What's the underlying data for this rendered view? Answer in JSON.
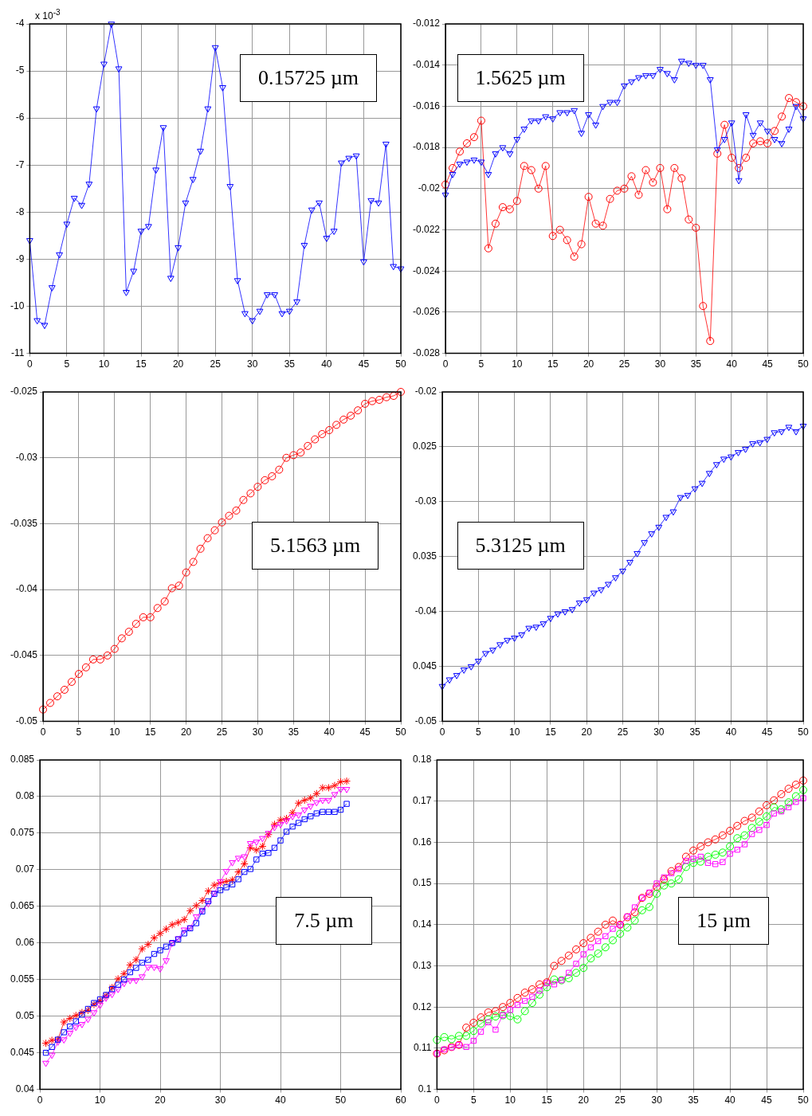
{
  "chart_data": [
    {
      "type": "line",
      "annotations": [
        "0.15725 µm",
        "x 10$^{-3}$"
      ],
      "grid": true,
      "line_style": "solid",
      "xlim": [
        0,
        50
      ],
      "xticks": [
        0,
        5,
        10,
        15,
        20,
        25,
        30,
        35,
        40,
        45,
        50
      ],
      "ylim": [
        -11,
        -4
      ],
      "yticks": [
        -11,
        -10,
        -9,
        -8,
        -7,
        -6,
        -5,
        -4
      ],
      "x": [
        0,
        1,
        2,
        3,
        4,
        5,
        6,
        7,
        8,
        9,
        10,
        11,
        12,
        13,
        14,
        15,
        16,
        17,
        18,
        19,
        20,
        21,
        22,
        23,
        24,
        25,
        26,
        27,
        28,
        29,
        30,
        31,
        32,
        33,
        34,
        35,
        36,
        37,
        38,
        39,
        40,
        41,
        42,
        43,
        44,
        45,
        46,
        47,
        48,
        49,
        50
      ],
      "series": [
        {
          "color": "#0000ff",
          "marker": "triangle",
          "values": [
            -8.6,
            -10.3,
            -10.4,
            -9.6,
            -8.9,
            -8.25,
            -7.7,
            -7.85,
            -7.4,
            -5.8,
            -4.85,
            -4.0,
            -4.95,
            -9.7,
            -9.25,
            -8.4,
            -8.3,
            -7.1,
            -6.2,
            -9.4,
            -8.75,
            -7.8,
            -7.3,
            -6.7,
            -5.8,
            -4.5,
            -5.35,
            -7.45,
            -9.45,
            -10.15,
            -10.3,
            -10.1,
            -9.75,
            -9.75,
            -10.15,
            -10.1,
            -9.9,
            -8.7,
            -7.95,
            -7.8,
            -8.55,
            -8.4,
            -6.95,
            -6.85,
            -6.8,
            -9.05,
            -7.75,
            -7.8,
            -6.55,
            -9.15,
            -9.2
          ]
        }
      ]
    },
    {
      "type": "line",
      "annotations": [
        "1.5625 µm"
      ],
      "grid": true,
      "line_style": "solid",
      "xlim": [
        0,
        50
      ],
      "xticks": [
        0,
        5,
        10,
        15,
        20,
        25,
        30,
        35,
        40,
        45,
        50
      ],
      "ylim": [
        -0.028,
        -0.012
      ],
      "yticks": [
        -0.028,
        -0.026,
        -0.024,
        -0.022,
        -0.02,
        -0.018,
        -0.016,
        -0.014,
        -0.012
      ],
      "x": [
        0,
        1,
        2,
        3,
        4,
        5,
        6,
        7,
        8,
        9,
        10,
        11,
        12,
        13,
        14,
        15,
        16,
        17,
        18,
        19,
        20,
        21,
        22,
        23,
        24,
        25,
        26,
        27,
        28,
        29,
        30,
        31,
        32,
        33,
        34,
        35,
        36,
        37,
        38,
        39,
        40,
        41,
        42,
        43,
        44,
        45,
        46,
        47,
        48,
        49,
        50
      ],
      "series": [
        {
          "color": "#0000ff",
          "marker": "triangle",
          "values": [
            -0.0203,
            -0.0193,
            -0.0188,
            -0.0187,
            -0.0186,
            -0.0187,
            -0.0193,
            -0.0183,
            -0.018,
            -0.0183,
            -0.0176,
            -0.0171,
            -0.0167,
            -0.0167,
            -0.0165,
            -0.0166,
            -0.0163,
            -0.0163,
            -0.0162,
            -0.0173,
            -0.0164,
            -0.0169,
            -0.016,
            -0.0158,
            -0.0158,
            -0.015,
            -0.0148,
            -0.0146,
            -0.0145,
            -0.0145,
            -0.0142,
            -0.0144,
            -0.0147,
            -0.0138,
            -0.0139,
            -0.014,
            -0.014,
            -0.0147,
            -0.0181,
            -0.0176,
            -0.0168,
            -0.0196,
            -0.0164,
            -0.0174,
            -0.0168,
            -0.0172,
            -0.0176,
            -0.0178,
            -0.0171,
            -0.016,
            -0.0166
          ]
        },
        {
          "color": "#ff0000",
          "marker": "circle",
          "values": [
            -0.0198,
            -0.019,
            -0.0182,
            -0.0178,
            -0.0175,
            -0.0167,
            -0.0229,
            -0.0217,
            -0.0209,
            -0.021,
            -0.0206,
            -0.0189,
            -0.0191,
            -0.02,
            -0.0189,
            -0.0223,
            -0.022,
            -0.0225,
            -0.0233,
            -0.0227,
            -0.0204,
            -0.0217,
            -0.0218,
            -0.0205,
            -0.0201,
            -0.02,
            -0.0194,
            -0.0203,
            -0.0191,
            -0.0197,
            -0.019,
            -0.021,
            -0.019,
            -0.0195,
            -0.0215,
            -0.0219,
            -0.0257,
            -0.0274,
            -0.0183,
            -0.0169,
            -0.0185,
            -0.019,
            -0.0185,
            -0.0178,
            -0.0177,
            -0.0178,
            -0.0172,
            -0.0165,
            -0.0156,
            -0.0158,
            -0.016
          ]
        }
      ]
    },
    {
      "type": "line",
      "annotations": [
        "5.1563 µm"
      ],
      "grid": true,
      "line_style": "solid",
      "xlim": [
        0,
        50
      ],
      "xticks": [
        0,
        5,
        10,
        15,
        20,
        25,
        30,
        35,
        40,
        45,
        50
      ],
      "ylim": [
        -0.05,
        -0.025
      ],
      "yticks": [
        -0.05,
        -0.045,
        -0.04,
        -0.035,
        -0.03,
        -0.025
      ],
      "x": [
        0,
        1,
        2,
        3,
        4,
        5,
        6,
        7,
        8,
        9,
        10,
        11,
        12,
        13,
        14,
        15,
        16,
        17,
        18,
        19,
        20,
        21,
        22,
        23,
        24,
        25,
        26,
        27,
        28,
        29,
        30,
        31,
        32,
        33,
        34,
        35,
        36,
        37,
        38,
        39,
        40,
        41,
        42,
        43,
        44,
        45,
        46,
        47,
        48,
        49,
        50
      ],
      "series": [
        {
          "color": "#ff0000",
          "marker": "circle",
          "values": [
            -0.0491,
            -0.0486,
            -0.0481,
            -0.0476,
            -0.047,
            -0.0464,
            -0.0459,
            -0.0453,
            -0.0453,
            -0.045,
            -0.0445,
            -0.0437,
            -0.0432,
            -0.0426,
            -0.0421,
            -0.0421,
            -0.0414,
            -0.0409,
            -0.0399,
            -0.0397,
            -0.0387,
            -0.0379,
            -0.0369,
            -0.0361,
            -0.0355,
            -0.0349,
            -0.0344,
            -0.034,
            -0.0332,
            -0.0327,
            -0.0322,
            -0.0317,
            -0.0314,
            -0.0309,
            -0.03,
            -0.0298,
            -0.0296,
            -0.0291,
            -0.0286,
            -0.0282,
            -0.0279,
            -0.0275,
            -0.0271,
            -0.0268,
            -0.0264,
            -0.0259,
            -0.0257,
            -0.0256,
            -0.0254,
            -0.0253,
            -0.025
          ]
        }
      ]
    },
    {
      "type": "line",
      "annotations": [
        "5.3125 µm"
      ],
      "grid": true,
      "line_style": "solid",
      "xlim": [
        0,
        50
      ],
      "xticks": [
        0,
        5,
        10,
        15,
        20,
        25,
        30,
        35,
        40,
        45,
        50
      ],
      "ylim": [
        -0.05,
        -0.02
      ],
      "yticks": [
        -0.05,
        {
          "value": -0.045,
          "label": "0.045"
        },
        -0.04,
        {
          "value": -0.035,
          "label": "0.035"
        },
        -0.03,
        {
          "value": -0.025,
          "label": "0.025"
        },
        -0.02
      ],
      "x": [
        0,
        1,
        2,
        3,
        4,
        5,
        6,
        7,
        8,
        9,
        10,
        11,
        12,
        13,
        14,
        15,
        16,
        17,
        18,
        19,
        20,
        21,
        22,
        23,
        24,
        25,
        26,
        27,
        28,
        29,
        30,
        31,
        32,
        33,
        34,
        35,
        36,
        37,
        38,
        39,
        40,
        41,
        42,
        43,
        44,
        45,
        46,
        47,
        48,
        49,
        50
      ],
      "series": [
        {
          "color": "#0000ff",
          "marker": "triangle",
          "values": [
            -0.0468,
            -0.0462,
            -0.0458,
            -0.0453,
            -0.045,
            -0.0445,
            -0.0438,
            -0.0435,
            -0.043,
            -0.0426,
            -0.0424,
            -0.0421,
            -0.0415,
            -0.0414,
            -0.0411,
            -0.0406,
            -0.0402,
            -0.04,
            -0.0398,
            -0.0392,
            -0.0389,
            -0.0383,
            -0.038,
            -0.0375,
            -0.0369,
            -0.0363,
            -0.0355,
            -0.0347,
            -0.0337,
            -0.0329,
            -0.0323,
            -0.0314,
            -0.0309,
            -0.0296,
            -0.0294,
            -0.0288,
            -0.0283,
            -0.0274,
            -0.0266,
            -0.0261,
            -0.0259,
            -0.0255,
            -0.0252,
            -0.0247,
            -0.0246,
            -0.0243,
            -0.0237,
            -0.0236,
            -0.0232,
            -0.0236,
            -0.0231
          ]
        }
      ]
    },
    {
      "type": "line",
      "annotations": [
        "7.5 µm"
      ],
      "grid": true,
      "line_style": "solid",
      "xlim": [
        0,
        60
      ],
      "xticks": [
        0,
        10,
        20,
        30,
        40,
        50,
        60
      ],
      "ylim": [
        0.04,
        0.085
      ],
      "yticks": [
        0.04,
        0.045,
        0.05,
        0.055,
        0.06,
        0.065,
        0.07,
        0.075,
        0.08,
        0.085
      ],
      "x": [
        1,
        2,
        3,
        4,
        5,
        6,
        7,
        8,
        9,
        10,
        11,
        12,
        13,
        14,
        15,
        16,
        17,
        18,
        19,
        20,
        21,
        22,
        23,
        24,
        25,
        26,
        27,
        28,
        29,
        30,
        31,
        32,
        33,
        34,
        35,
        36,
        37,
        38,
        39,
        40,
        41,
        42,
        43,
        44,
        45,
        46,
        47,
        48,
        49,
        50,
        51
      ],
      "series": [
        {
          "color": "#0000ff",
          "marker": "square",
          "values": [
            0.045,
            0.0458,
            0.0468,
            0.0478,
            0.0486,
            0.0493,
            0.0502,
            0.051,
            0.0518,
            0.0523,
            0.0529,
            0.0537,
            0.0543,
            0.055,
            0.056,
            0.0566,
            0.0573,
            0.0577,
            0.0585,
            0.059,
            0.0595,
            0.06,
            0.0605,
            0.0613,
            0.062,
            0.0627,
            0.0643,
            0.0657,
            0.0667,
            0.0672,
            0.0676,
            0.068,
            0.0687,
            0.0697,
            0.0701,
            0.0714,
            0.0722,
            0.0723,
            0.073,
            0.074,
            0.0752,
            0.0759,
            0.0764,
            0.0769,
            0.0773,
            0.0777,
            0.0779,
            0.0779,
            0.0779,
            0.0782,
            0.079
          ]
        },
        {
          "color": "#ff00ff",
          "marker": "triangle",
          "values": [
            0.0436,
            0.0447,
            0.0465,
            0.0468,
            0.0477,
            0.0485,
            0.0489,
            0.0496,
            0.0505,
            0.0515,
            0.0525,
            0.053,
            0.0537,
            0.0545,
            0.0549,
            0.0549,
            0.0554,
            0.0567,
            0.0567,
            0.0565,
            0.0576,
            0.06,
            0.0606,
            0.0618,
            0.0621,
            0.0636,
            0.0645,
            0.0654,
            0.0668,
            0.0684,
            0.0698,
            0.071,
            0.0716,
            0.0718,
            0.0736,
            0.0738,
            0.0743,
            0.075,
            0.0758,
            0.0762,
            0.0767,
            0.0773,
            0.0775,
            0.0782,
            0.0787,
            0.0792,
            0.0795,
            0.0795,
            0.0803,
            0.081,
            0.081
          ]
        },
        {
          "color": "#ff0000",
          "marker": "cross",
          "values": [
            0.0463,
            0.0467,
            0.0468,
            0.0492,
            0.0497,
            0.0501,
            0.0505,
            0.0508,
            0.0516,
            0.0521,
            0.0528,
            0.0539,
            0.0551,
            0.0558,
            0.057,
            0.0577,
            0.0592,
            0.0598,
            0.0607,
            0.0613,
            0.0619,
            0.0625,
            0.0628,
            0.0632,
            0.0644,
            0.0651,
            0.0658,
            0.0671,
            0.0679,
            0.0682,
            0.0684,
            0.0686,
            0.0697,
            0.0708,
            0.073,
            0.0727,
            0.0732,
            0.0748,
            0.0762,
            0.0768,
            0.077,
            0.0778,
            0.0791,
            0.0795,
            0.0798,
            0.0804,
            0.0812,
            0.0812,
            0.0815,
            0.082,
            0.0821
          ]
        }
      ]
    },
    {
      "type": "line",
      "annotations": [
        "15 µm"
      ],
      "grid": true,
      "line_style": "solid",
      "xlim": [
        0,
        50
      ],
      "xticks": [
        0,
        5,
        10,
        15,
        20,
        25,
        30,
        35,
        40,
        45,
        50
      ],
      "ylim": [
        0.1,
        0.18
      ],
      "yticks": [
        0.1,
        0.11,
        0.12,
        0.13,
        0.14,
        0.15,
        0.16,
        0.17,
        0.18
      ],
      "x": [
        0,
        1,
        2,
        3,
        4,
        5,
        6,
        7,
        8,
        9,
        10,
        11,
        12,
        13,
        14,
        15,
        16,
        17,
        18,
        19,
        20,
        21,
        22,
        23,
        24,
        25,
        26,
        27,
        28,
        29,
        30,
        31,
        32,
        33,
        34,
        35,
        36,
        37,
        38,
        39,
        40,
        41,
        42,
        43,
        44,
        45,
        46,
        47,
        48,
        49,
        50
      ],
      "series": [
        {
          "color": "#ff00ff",
          "marker": "square",
          "values": [
            0.1087,
            0.1097,
            0.1102,
            0.1108,
            0.1103,
            0.1118,
            0.114,
            0.1163,
            0.1145,
            0.118,
            0.1193,
            0.1205,
            0.1215,
            0.1225,
            0.124,
            0.1258,
            0.1255,
            0.1265,
            0.1283,
            0.1305,
            0.1328,
            0.1345,
            0.136,
            0.1372,
            0.139,
            0.14,
            0.142,
            0.1442,
            0.1465,
            0.1478,
            0.15,
            0.1515,
            0.1525,
            0.1535,
            0.1555,
            0.156,
            0.1565,
            0.155,
            0.1547,
            0.1552,
            0.1572,
            0.1582,
            0.1595,
            0.162,
            0.163,
            0.1642,
            0.167,
            0.1675,
            0.1685,
            0.1698,
            0.1707
          ]
        },
        {
          "color": "#00ff00",
          "marker": "circle",
          "values": [
            0.112,
            0.1127,
            0.1122,
            0.113,
            0.113,
            0.1142,
            0.116,
            0.117,
            0.1177,
            0.118,
            0.1178,
            0.117,
            0.119,
            0.121,
            0.123,
            0.1248,
            0.1267,
            0.1265,
            0.127,
            0.1283,
            0.1295,
            0.1318,
            0.133,
            0.1345,
            0.1362,
            0.1378,
            0.1393,
            0.141,
            0.1435,
            0.1443,
            0.1475,
            0.1495,
            0.15,
            0.151,
            0.154,
            0.155,
            0.1553,
            0.1565,
            0.157,
            0.1575,
            0.159,
            0.161,
            0.1617,
            0.1635,
            0.165,
            0.1663,
            0.1685,
            0.168,
            0.1697,
            0.1712,
            0.1727
          ]
        },
        {
          "color": "#ff0000",
          "marker": "circle",
          "values": [
            0.1087,
            0.1095,
            0.1103,
            0.1108,
            0.115,
            0.1162,
            0.1175,
            0.1187,
            0.119,
            0.12,
            0.121,
            0.1222,
            0.1235,
            0.1243,
            0.1255,
            0.126,
            0.13,
            0.1312,
            0.1325,
            0.134,
            0.1355,
            0.1368,
            0.1383,
            0.14,
            0.141,
            0.14,
            0.1418,
            0.143,
            0.1465,
            0.1475,
            0.1492,
            0.151,
            0.153,
            0.154,
            0.1565,
            0.158,
            0.159,
            0.16,
            0.1607,
            0.1617,
            0.1628,
            0.164,
            0.1652,
            0.166,
            0.1675,
            0.169,
            0.1702,
            0.1717,
            0.173,
            0.174,
            0.175
          ]
        }
      ]
    }
  ]
}
